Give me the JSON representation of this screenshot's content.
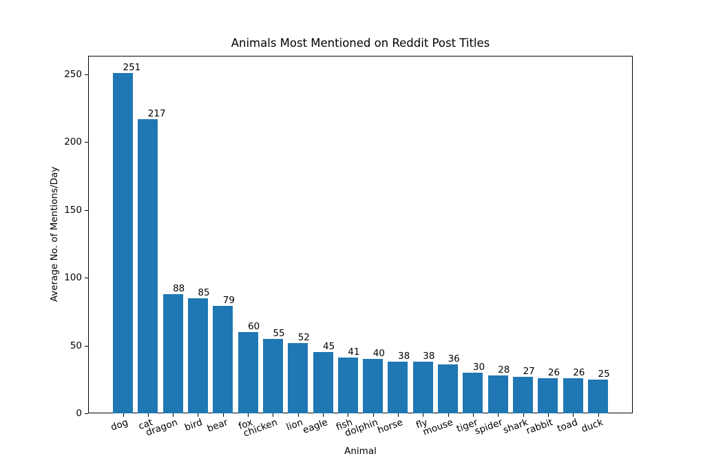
{
  "chart_data": {
    "type": "bar",
    "title": "Animals Most Mentioned on Reddit Post Titles",
    "xlabel": "Animal",
    "ylabel": "Average No. of Mentions/Day",
    "categories": [
      "dog",
      "cat",
      "dragon",
      "bird",
      "bear",
      "fox",
      "chicken",
      "lion",
      "eagle",
      "fish",
      "dolphin",
      "horse",
      "fly",
      "mouse",
      "tiger",
      "spider",
      "shark",
      "rabbit",
      "toad",
      "duck"
    ],
    "values": [
      251,
      217,
      88,
      85,
      79,
      60,
      55,
      52,
      45,
      41,
      40,
      38,
      38,
      36,
      30,
      28,
      27,
      26,
      26,
      25
    ],
    "value_labels_shown": true,
    "yticks": [
      0,
      50,
      100,
      150,
      200,
      250
    ],
    "ylim": [
      0,
      263.55
    ],
    "x_tick_rotation_deg": 20,
    "grid": false,
    "legend": null,
    "colors": {
      "bar": "#1f77b4",
      "text": "#000000",
      "background": "#ffffff",
      "axis": "#000000"
    }
  }
}
